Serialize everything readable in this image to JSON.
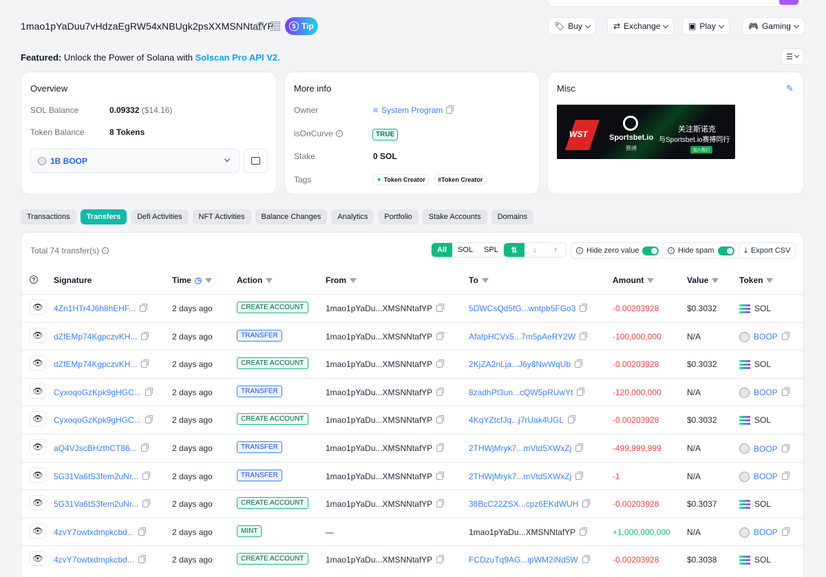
{
  "header": {
    "address": "1mao1pYaDuu7vHdzaEgRW54xNBUgk2psXXMSNNtafYP",
    "tip_label": "Tip",
    "nav": [
      {
        "label": "Buy",
        "icon": "tag-icon"
      },
      {
        "label": "Exchange",
        "icon": "exchange-icon"
      },
      {
        "label": "Play",
        "icon": "play-icon"
      },
      {
        "label": "Gaming",
        "icon": "gamepad-icon"
      }
    ]
  },
  "featured": {
    "prefix": "Featured:",
    "text": "Unlock the Power of Solana with",
    "link": "Solscan Pro API V2."
  },
  "overview": {
    "title": "Overview",
    "sol_balance_label": "SOL Balance",
    "sol_balance_value": "0.09332",
    "sol_balance_usd": "($14.16)",
    "token_balance_label": "Token Balance",
    "token_balance_value": "8 Tokens",
    "token_select": "1B BOOP"
  },
  "more_info": {
    "title": "More info",
    "owner_label": "Owner",
    "owner_value": "System Program",
    "oncurve_label": "isOnCurve",
    "oncurve_value": "TRUE",
    "stake_label": "Stake",
    "stake_value": "0 SOL",
    "tags_label": "Tags",
    "tags": [
      "Token Creator",
      "#Token Creator"
    ]
  },
  "misc": {
    "title": "Misc",
    "banner": {
      "brand": "Sportsbet.io",
      "sub": "赛搏",
      "line1": "关注斯诺克",
      "line2": "与Sportsbet.io赛搏同行",
      "cta": "加入我们"
    }
  },
  "tabs": [
    "Transactions",
    "Transfers",
    "Defi Activities",
    "NFT Activities",
    "Balance Changes",
    "Analytics",
    "Portfolio",
    "Stake Accounts",
    "Domains"
  ],
  "active_tab": "Transfers",
  "table": {
    "total": "Total 74 transfer(s)",
    "filters": [
      "All",
      "SOL",
      "SPL"
    ],
    "hide_zero": "Hide zero value",
    "hide_spam": "Hide spam",
    "export": "Export CSV",
    "columns": [
      "Signature",
      "Time",
      "Action",
      "From",
      "To",
      "Amount",
      "Value",
      "Token"
    ],
    "rows": [
      {
        "sig": "4Zn1HTr4J6h8hEHF...",
        "time": "2 days ago",
        "action": "CREATE ACCOUNT",
        "from": "1mao1pYaDu...XMSNNtafYP",
        "to": "5DWCsQd5fG...wntpb5FGo3",
        "amount": "-0.00203928",
        "value": "$0.3032",
        "token": "SOL"
      },
      {
        "sig": "dZfEMp74KgpczvKH...",
        "time": "2 days ago",
        "action": "TRANSFER",
        "from": "1mao1pYaDu...XMSNNtafYP",
        "to": "AfafpHCVx5...7m5pAeRY2W",
        "amount": "-100,000,000",
        "value": "N/A",
        "token": "BOOP"
      },
      {
        "sig": "dZfEMp74KgpczvKH...",
        "time": "2 days ago",
        "action": "CREATE ACCOUNT",
        "from": "1mao1pYaDu...XMSNNtafYP",
        "to": "2KjZA2nLja...J6y8NwWqUb",
        "amount": "-0.00203928",
        "value": "$0.3032",
        "token": "SOL"
      },
      {
        "sig": "CyxoqoGzKpk9gHGC...",
        "time": "2 days ago",
        "action": "TRANSFER",
        "from": "1mao1pYaDu...XMSNNtafYP",
        "to": "8zadhPt3un...cQW5pRUwYt",
        "amount": "-120,000,000",
        "value": "N/A",
        "token": "BOOP"
      },
      {
        "sig": "CyxoqoGzKpk9gHGC...",
        "time": "2 days ago",
        "action": "CREATE ACCOUNT",
        "from": "1mao1pYaDu...XMSNNtafYP",
        "to": "4KqYZtcfJq...j7rUak4UGL",
        "amount": "-0.00203928",
        "value": "$0.3032",
        "token": "SOL"
      },
      {
        "sig": "aQ4VJscBHzthCT86...",
        "time": "2 days ago",
        "action": "TRANSFER",
        "from": "1mao1pYaDu...XMSNNtafYP",
        "to": "2THWjMryk7...mVtd5XWxZj",
        "amount": "-499,999,999",
        "value": "N/A",
        "token": "BOOP"
      },
      {
        "sig": "5G31Va6tS3fem2uNr...",
        "time": "2 days ago",
        "action": "TRANSFER",
        "from": "1mao1pYaDu...XMSNNtafYP",
        "to": "2THWjMryk7...mVtd5XWxZj",
        "amount": "-1",
        "value": "N/A",
        "token": "BOOP"
      },
      {
        "sig": "5G31Va6tS3fem2uNr...",
        "time": "2 days ago",
        "action": "CREATE ACCOUNT",
        "from": "1mao1pYaDu...XMSNNtafYP",
        "to": "38BcC22ZSX...cpz6EKdWUH",
        "amount": "-0.00203928",
        "value": "$0.3037",
        "token": "SOL"
      },
      {
        "sig": "4zvY7owtxdmpkcbd...",
        "time": "2 days ago",
        "action": "MINT",
        "from": "—",
        "to": "1mao1pYaDu...XMSNNtafYP",
        "amount": "+1,000,000,000",
        "value": "N/A",
        "token": "BOOP"
      },
      {
        "sig": "4zvY7owtxdmpkcbd...",
        "time": "2 days ago",
        "action": "CREATE ACCOUNT",
        "from": "1mao1pYaDu...XMSNNtafYP",
        "to": "FCDzuTq9AG...ipWM2iNd5W",
        "amount": "-0.00203928",
        "value": "$0.3038",
        "token": "SOL"
      }
    ]
  },
  "colors": {
    "accent": "#10b981",
    "link": "#3b82f6",
    "negative": "#ef4444"
  }
}
